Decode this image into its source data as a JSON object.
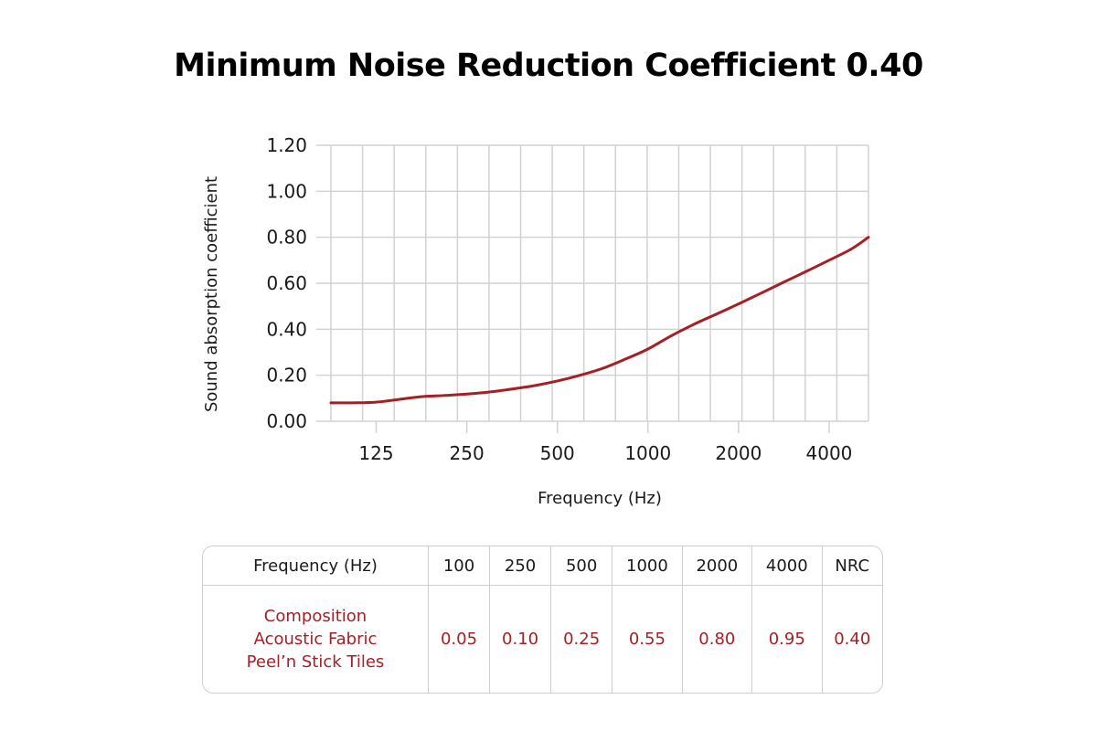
{
  "title": "Minimum Noise Reduction Coefficient 0.40",
  "chart_data": {
    "type": "line",
    "title": "Minimum Noise Reduction Coefficient 0.40",
    "xlabel": "Frequency (Hz)",
    "ylabel": "Sound absorption coefficient",
    "xscale": "log",
    "x_tick_labels": [
      "125",
      "250",
      "500",
      "1000",
      "2000",
      "4000"
    ],
    "x_ticks": [
      125,
      250,
      500,
      1000,
      2000,
      4000
    ],
    "y_tick_labels": [
      "0.00",
      "0.20",
      "0.40",
      "0.60",
      "0.80",
      "1.00",
      "1.20"
    ],
    "ylim": [
      0,
      1.2
    ],
    "xlim": [
      88.4,
      5405
    ],
    "grid": true,
    "line_color": "#a61f24",
    "series": [
      {
        "name": "Composition Acoustic Fabric Peel'n Stick Tiles",
        "x": [
          88.4,
          105.1,
          125,
          148.7,
          176.8,
          210.2,
          250,
          297.3,
          353.6,
          420.4,
          500,
          594.6,
          707.1,
          840.9,
          1000,
          1189,
          1414,
          1682,
          2000,
          2378,
          2828,
          3364,
          4000,
          4757,
          5405
        ],
        "y": [
          0.08,
          0.08,
          0.083,
          0.095,
          0.107,
          0.112,
          0.118,
          0.127,
          0.14,
          0.155,
          0.175,
          0.2,
          0.23,
          0.27,
          0.314,
          0.37,
          0.42,
          0.465,
          0.51,
          0.557,
          0.605,
          0.652,
          0.7,
          0.75,
          0.8
        ]
      }
    ]
  },
  "table": {
    "header": [
      "Frequency (Hz)",
      "100",
      "250",
      "500",
      "1000",
      "2000",
      "4000",
      "NRC"
    ],
    "row_label_lines": [
      "Composition",
      "Acoustic Fabric",
      "Peel’n Stick Tiles"
    ],
    "values": [
      "0.05",
      "0.10",
      "0.25",
      "0.55",
      "0.80",
      "0.95",
      "0.40"
    ]
  }
}
